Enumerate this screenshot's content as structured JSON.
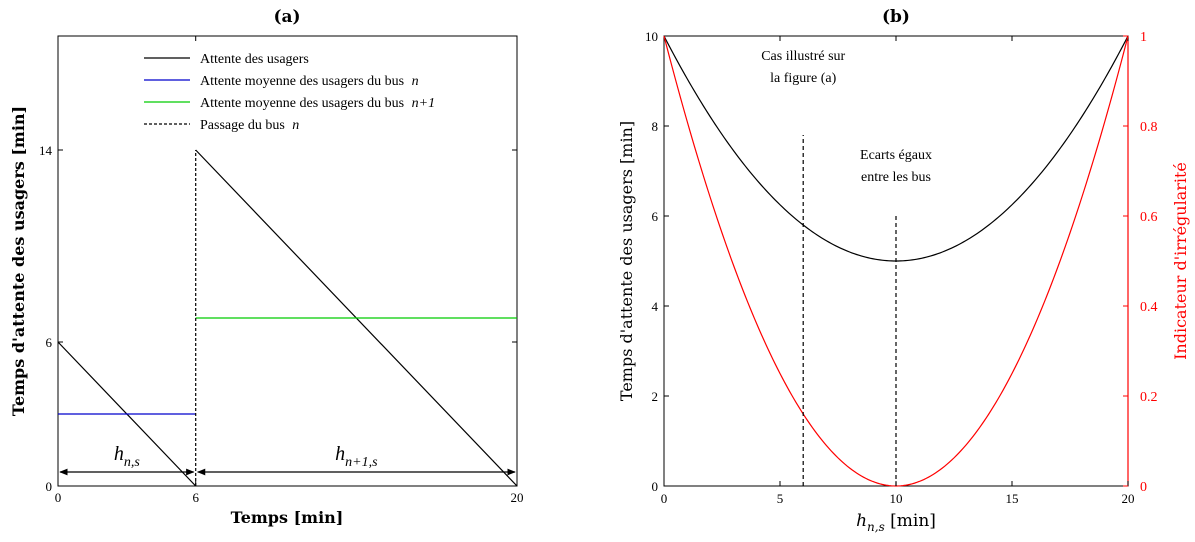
{
  "chart_data": [
    {
      "type": "line",
      "panel_label": "(a)",
      "xlabel": "Temps  [min]",
      "ylabel": "Temps d'attente des usagers [min]",
      "xlim": [
        0,
        20
      ],
      "ylim": [
        0,
        20
      ],
      "xticks": [
        "0",
        "6",
        "20"
      ],
      "xtick_values": [
        0,
        6,
        20
      ],
      "yticks": [
        "0",
        "6",
        "14"
      ],
      "ytick_values": [
        0,
        6,
        14
      ],
      "legend_position": "top",
      "series": [
        {
          "name": "Attente des usagers",
          "color": "#000000",
          "style": "solid",
          "segments": [
            [
              [
                0,
                6
              ],
              [
                6,
                0
              ]
            ],
            [
              [
                6,
                14
              ],
              [
                20,
                0
              ]
            ]
          ]
        },
        {
          "name": "Attente moyenne des usagers du bus ",
          "name_italic": "n",
          "color": "#0000cc",
          "style": "solid",
          "segments": [
            [
              [
                0,
                3
              ],
              [
                6,
                3
              ]
            ]
          ]
        },
        {
          "name": "Attente moyenne des usagers du bus ",
          "name_italic": "n+1",
          "color": "#00cc00",
          "style": "solid",
          "segments": [
            [
              [
                6,
                7
              ],
              [
                20,
                7
              ]
            ]
          ]
        },
        {
          "name": "Passage du bus ",
          "name_italic": "n",
          "color": "#000000",
          "style": "dashed",
          "segments": [
            [
              [
                6,
                0
              ],
              [
                6,
                14
              ]
            ]
          ]
        }
      ],
      "annotations": [
        {
          "text": "h",
          "sub": "n,s",
          "x_from": 0,
          "x_to": 6,
          "y": 0.6
        },
        {
          "text": "h",
          "sub": "n+1,s",
          "x_from": 6,
          "x_to": 20,
          "y": 0.6
        }
      ]
    },
    {
      "type": "line",
      "panel_label": "(b)",
      "xlabel_main": "h",
      "xlabel_sub": "n,s",
      "xlabel_unit": " [min]",
      "ylabel_left": "Temps d'attente des usagers [min]",
      "ylabel_right": "Indicateur d'irrégularité",
      "xlim": [
        0,
        20
      ],
      "ylim_left": [
        0,
        10
      ],
      "ylim_right": [
        0,
        1
      ],
      "xticks": [
        "0",
        "5",
        "10",
        "15",
        "20"
      ],
      "xtick_values": [
        0,
        5,
        10,
        15,
        20
      ],
      "yticks_left": [
        "0",
        "2",
        "4",
        "6",
        "8",
        "10"
      ],
      "ytick_values_left": [
        0,
        2,
        4,
        6,
        8,
        10
      ],
      "yticks_right": [
        "0",
        "0.2",
        "0.4",
        "0.6",
        "0.8",
        "1"
      ],
      "ytick_values_right": [
        0,
        0.2,
        0.4,
        0.6,
        0.8,
        1
      ],
      "right_axis_color": "#ff0000",
      "series": [
        {
          "axis": "left",
          "color": "#000000",
          "x": [
            0,
            2,
            4,
            6,
            8,
            10,
            12,
            14,
            16,
            18,
            20
          ],
          "y": [
            10,
            8.2,
            6.8,
            5.8,
            5.2,
            5.0,
            5.2,
            5.8,
            6.8,
            8.2,
            10
          ]
        },
        {
          "axis": "right",
          "color": "#ff0000",
          "x": [
            0,
            2,
            4,
            6,
            8,
            10,
            12,
            14,
            16,
            18,
            20
          ],
          "y": [
            1,
            0.64,
            0.36,
            0.16,
            0.04,
            0,
            0.04,
            0.16,
            0.36,
            0.64,
            1
          ]
        }
      ],
      "vlines": [
        {
          "x": 6,
          "y_top": 7.8,
          "style": "dashed"
        },
        {
          "x": 10,
          "y_top": 6.0,
          "style": "dashed"
        }
      ],
      "annotations": [
        {
          "lines": [
            "Cas illustré sur",
            "la figure (a)"
          ],
          "x": 6,
          "y": 9.2
        },
        {
          "lines": [
            "Ecarts égaux",
            "entre les bus"
          ],
          "x": 10,
          "y": 7.0
        }
      ]
    }
  ]
}
